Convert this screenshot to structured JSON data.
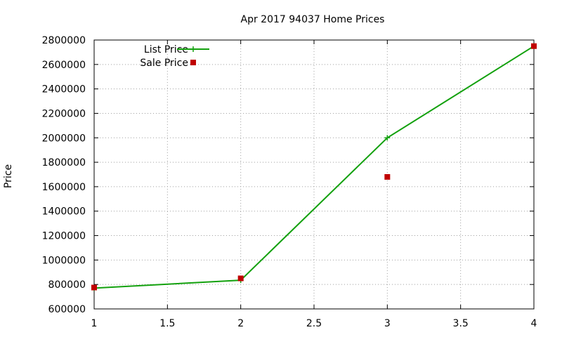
{
  "chart_data": {
    "type": "line",
    "title": "Apr 2017 94037 Home Prices",
    "xlabel": "",
    "ylabel": "Price",
    "xlim": [
      1,
      4
    ],
    "ylim": [
      600000,
      2800000
    ],
    "x_ticks": [
      "1",
      "1.5",
      "2",
      "2.5",
      "3",
      "3.5",
      "4"
    ],
    "y_ticks": [
      "600000",
      "800000",
      "1000000",
      "1200000",
      "1400000",
      "1600000",
      "1800000",
      "2000000",
      "2200000",
      "2400000",
      "2600000",
      "2800000"
    ],
    "grid": true,
    "legend_position": "top-left",
    "series": [
      {
        "name": "List Price",
        "style": "line",
        "color": "#13a10e",
        "x": [
          1,
          2,
          3,
          4
        ],
        "values": [
          770000,
          835000,
          2000000,
          2750000
        ]
      },
      {
        "name": "Sale Price",
        "style": "points",
        "color": "#c00000",
        "x": [
          1,
          2,
          3,
          4
        ],
        "values": [
          775000,
          850000,
          1680000,
          2750000
        ]
      }
    ]
  }
}
